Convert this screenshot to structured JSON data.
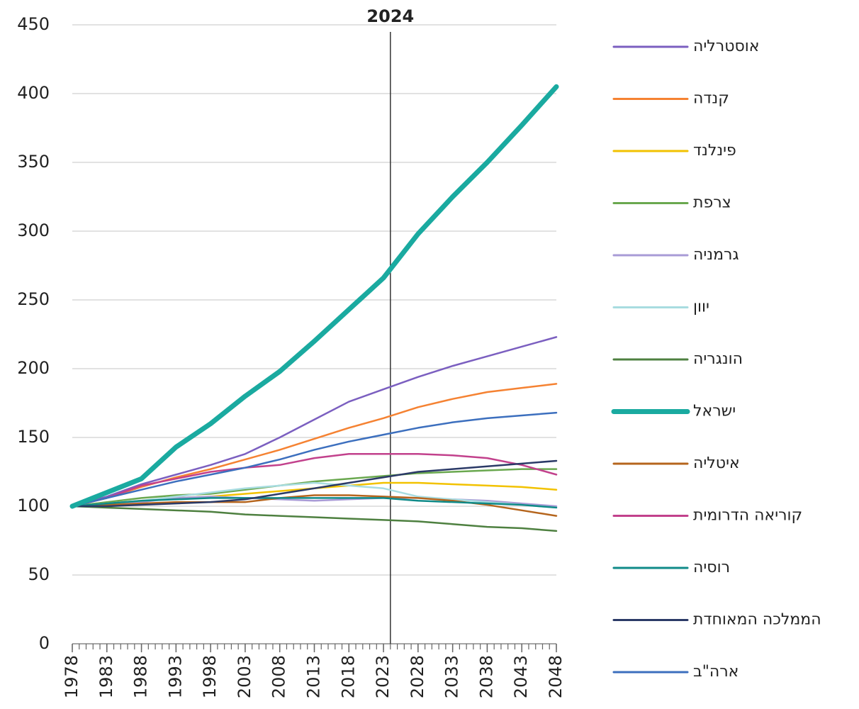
{
  "chart_data": {
    "type": "line",
    "x": [
      1978,
      1983,
      1988,
      1993,
      1998,
      2003,
      2008,
      2013,
      2018,
      2023,
      2028,
      2033,
      2038,
      2043,
      2048
    ],
    "xlim": [
      1978,
      2048
    ],
    "xticks": [
      1978,
      1983,
      1988,
      1993,
      1998,
      2003,
      2008,
      2013,
      2018,
      2023,
      2028,
      2033,
      2038,
      2043,
      2048
    ],
    "xminorticks": [
      1978,
      1979,
      1980,
      1981,
      1982,
      1983,
      1984,
      1985,
      1986,
      1987,
      1988,
      1989,
      1990,
      1991,
      1992,
      1993,
      1994,
      1995,
      1996,
      1997,
      1998,
      1999,
      2000,
      2001,
      2002,
      2003,
      2004,
      2005,
      2006,
      2007,
      2008,
      2009,
      2010,
      2011,
      2012,
      2013,
      2014,
      2015,
      2016,
      2017,
      2018,
      2019,
      2020,
      2021,
      2022,
      2023,
      2024,
      2025,
      2026,
      2027,
      2028,
      2029,
      2030,
      2031,
      2032,
      2033,
      2034,
      2035,
      2036,
      2037,
      2038,
      2039,
      2040,
      2041,
      2042,
      2043,
      2044,
      2045,
      2046,
      2047,
      2048
    ],
    "ylim": [
      0,
      450
    ],
    "yticks": [
      0,
      50,
      100,
      150,
      200,
      250,
      300,
      350,
      400,
      450
    ],
    "grid": true,
    "legend": "right",
    "annotations": [
      {
        "label": "2024",
        "x": 2024
      }
    ],
    "series": [
      {
        "name": "אוסטרליה",
        "color": "#7b5fc0",
        "values": [
          100,
          107,
          116,
          123,
          130,
          138,
          150,
          163,
          176,
          185,
          194,
          202,
          209,
          216,
          223
        ]
      },
      {
        "name": "קנדה",
        "color": "#f58232",
        "values": [
          100,
          106,
          114,
          121,
          127,
          134,
          141,
          149,
          157,
          164,
          172,
          178,
          183,
          186,
          189
        ]
      },
      {
        "name": "פינלנד",
        "color": "#f2c200",
        "values": [
          100,
          102,
          104,
          106,
          107,
          109,
          111,
          113,
          115,
          117,
          117,
          116,
          115,
          114,
          112
        ]
      },
      {
        "name": "צרפת",
        "color": "#6aa84f",
        "values": [
          100,
          103,
          106,
          108,
          109,
          112,
          115,
          118,
          120,
          122,
          124,
          125,
          126,
          127,
          127
        ]
      },
      {
        "name": "גרמניה",
        "color": "#a89bd6",
        "values": [
          100,
          101,
          103,
          106,
          107,
          106,
          105,
          104,
          105,
          106,
          106,
          105,
          104,
          102,
          100
        ]
      },
      {
        "name": "יוון",
        "color": "#a8dce0",
        "values": [
          100,
          102,
          104,
          107,
          110,
          113,
          115,
          117,
          115,
          113,
          107,
          105,
          103,
          101,
          99
        ]
      },
      {
        "name": "הונגריה",
        "color": "#4e8040",
        "values": [
          100,
          99,
          98,
          97,
          96,
          94,
          93,
          92,
          91,
          90,
          89,
          87,
          85,
          84,
          82
        ]
      },
      {
        "name": "ישראל",
        "color": "#1aaaa0",
        "width": 7,
        "values": [
          100,
          110,
          120,
          143,
          160,
          180,
          198,
          220,
          243,
          266,
          298,
          325,
          350,
          377,
          405
        ]
      },
      {
        "name": "איטליה",
        "color": "#b5651d",
        "values": [
          100,
          101,
          102,
          103,
          103,
          103,
          106,
          108,
          108,
          107,
          106,
          104,
          101,
          97,
          93
        ]
      },
      {
        "name": "קוריאה הדרומית",
        "color": "#c2418c",
        "values": [
          100,
          106,
          115,
          120,
          125,
          128,
          130,
          135,
          138,
          138,
          138,
          137,
          135,
          130,
          123
        ]
      },
      {
        "name": "רוסיה",
        "color": "#0f8a88",
        "values": [
          100,
          102,
          104,
          105,
          106,
          106,
          106,
          106,
          106,
          106,
          104,
          103,
          102,
          101,
          99
        ]
      },
      {
        "name": "הממלכה המאוחדת",
        "color": "#2b3a67",
        "values": [
          100,
          100,
          101,
          102,
          103,
          105,
          109,
          113,
          117,
          121,
          125,
          127,
          129,
          131,
          133
        ]
      },
      {
        "name": "ארה\"ב",
        "color": "#3c6fbe",
        "values": [
          100,
          106,
          112,
          118,
          123,
          128,
          134,
          141,
          147,
          152,
          157,
          161,
          164,
          166,
          168
        ]
      }
    ]
  }
}
